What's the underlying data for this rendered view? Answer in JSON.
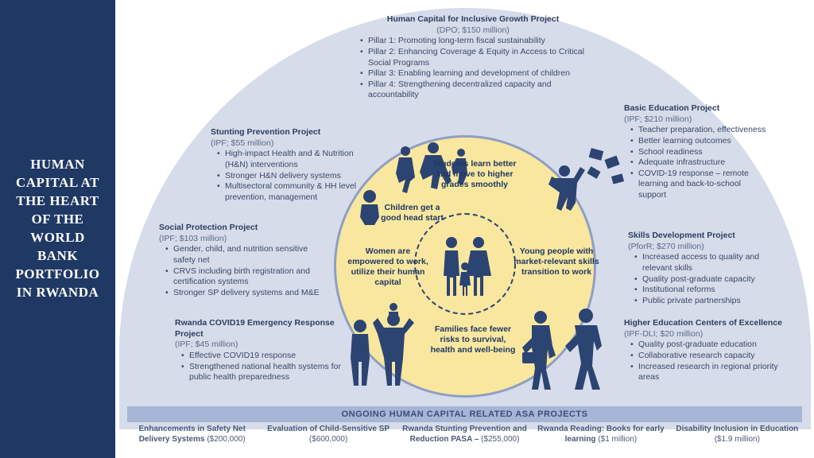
{
  "sidebar": {
    "title": "HUMAN CAPITAL AT THE HEART OF THE WORLD BANK PORTFOLIO IN RWANDA"
  },
  "colors": {
    "sidebar_bg": "#1f3864",
    "arch_bg": "#d6dcea",
    "yellow": "#f9e79f",
    "silhouette": "#2c4472",
    "text_dark": "#1f3864",
    "asa_bar": "#a7b5d6"
  },
  "circle_texts": {
    "top": "Students learn better and move to higher grades smoothly",
    "topleft": "Children get a good head start",
    "left": "Women are empowered to work, utilize their human capital",
    "right": "Young people with market-relevant skills transition to work",
    "bottom": "Families face fewer risks to survival, health and well-being"
  },
  "projects": {
    "top": {
      "title": "Human Capital for Inclusive Growth Project",
      "sub": "(DPO; $150 million)",
      "items": [
        "Pillar 1: Promoting long-term fiscal sustainability",
        "Pillar 2: Enhancing Coverage & Equity in Access to Critical Social Programs",
        "Pillar 3: Enabling learning and development of children",
        "Pillar 4: Strengthening decentralized capacity and accountability"
      ]
    },
    "stunting": {
      "title": "Stunting Prevention Project",
      "sub": "(IPF; $55 million)",
      "items": [
        "High-impact Health and & Nutrition (H&N) interventions",
        "Stronger H&N delivery systems",
        "Multisectoral community & HH level prevention, management"
      ]
    },
    "social": {
      "title": "Social Protection Project",
      "sub": "(IPF; $103 million)",
      "items": [
        "Gender, child, and nutrition sensitive safety net",
        "CRVS including birth registration and certification systems",
        "Stronger SP delivery systems and M&E"
      ]
    },
    "covid": {
      "title": "Rwanda COVID19 Emergency Response Project",
      "sub": "(IPF; $45 million)",
      "items": [
        "Effective COVID19 response",
        "Strengthened national health systems for public health preparedness"
      ]
    },
    "basic": {
      "title": "Basic Education Project",
      "sub": "(IPF; $210 million)",
      "items": [
        "Teacher preparation, effectiveness",
        "Better learning outcomes",
        "School readiness",
        "Adequate infrastructure",
        "COVID-19 response – remote learning and back-to-school support"
      ]
    },
    "skills": {
      "title": "Skills Development Project",
      "sub": "(PforR; $270 million)",
      "items": [
        "Increased access to quality and relevant skills",
        "Quality post-graduate capacity",
        "Institutional reforms",
        "Public private partnerships"
      ]
    },
    "higher": {
      "title": "Higher Education Centers of Excellence",
      "sub": "(IPF-DLI; $20 million)",
      "items": [
        "Quality post-graduate education",
        "Collaborative research capacity",
        "Increased research in regional priority areas"
      ]
    }
  },
  "asa": {
    "title": "ONGOING HUMAN CAPITAL RELATED ASA PROJECTS",
    "items": [
      {
        "title": "Enhancements in Safety Net Delivery Systems",
        "amount": " ($200,000)"
      },
      {
        "title": "Evaluation of Child-Sensitive SP",
        "amount": " ($600,000)"
      },
      {
        "title": "Rwanda Stunting Prevention and Reduction PASA –",
        "amount": " ($255,000)"
      },
      {
        "title": "Rwanda Reading: Books for early learning",
        "amount": " ($1 million)"
      },
      {
        "title": "Disability Inclusion in Education",
        "amount": " ($1.9 million)"
      }
    ]
  }
}
